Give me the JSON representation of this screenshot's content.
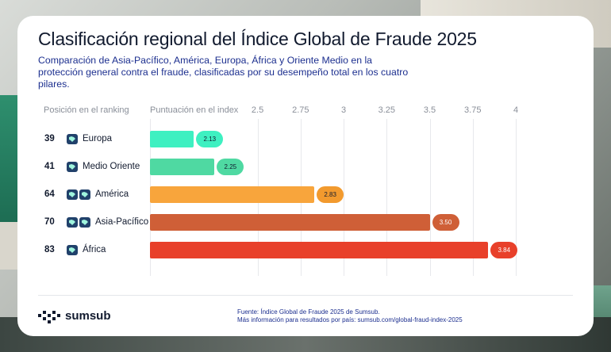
{
  "card": {
    "title": "Clasificación regional del Índice Global de Fraude 2025",
    "subtitle": "Comparación de Asia-Pacífico, América, Europa, África y Oriente Medio en la protección general contra el fraude, clasificadas por su desempeño total en los cuatro pilares."
  },
  "chart_data": {
    "type": "bar",
    "orientation": "horizontal",
    "column_rank_header": "Posición en el ranking",
    "column_score_header": "Puntuación en el index",
    "axis_ticks": [
      "2.5",
      "2.75",
      "3",
      "3.25",
      "3.5",
      "3.75",
      "4"
    ],
    "xlim": [
      1.875,
      4.0
    ],
    "grid": true,
    "rows": [
      {
        "rank": "39",
        "region": "Europa",
        "value": 2.13,
        "label": "2.13",
        "color": "#3ef0c1",
        "pill_color": "#3ef0c1",
        "pill_text_color": "#111a2e",
        "flags": 1
      },
      {
        "rank": "41",
        "region": "Medio Oriente",
        "value": 2.25,
        "label": "2.25",
        "color": "#4fd9a2",
        "pill_color": "#4fd9a2",
        "pill_text_color": "#111a2e",
        "flags": 1
      },
      {
        "rank": "64",
        "region": "América",
        "value": 2.83,
        "label": "2.83",
        "color": "#f8a53c",
        "pill_color": "#f29a2e",
        "pill_text_color": "#111a2e",
        "flags": 2
      },
      {
        "rank": "70",
        "region": "Asia-Pacífico",
        "value": 3.5,
        "label": "3.50",
        "color": "#cf5f37",
        "pill_color": "#cf5f37",
        "pill_text_color": "#ffffff",
        "flags": 2
      },
      {
        "rank": "83",
        "region": "África",
        "value": 3.84,
        "label": "3.84",
        "color": "#e8402a",
        "pill_color": "#e8402a",
        "pill_text_color": "#ffffff",
        "flags": 1
      }
    ]
  },
  "footer": {
    "logo_text": "sumsub",
    "source_line1": "Fuente: Índice Global de Fraude 2025 de Sumsub.",
    "source_line2": "Más información para resultados por país: sumsub.com/global-fraud-index-2025"
  }
}
